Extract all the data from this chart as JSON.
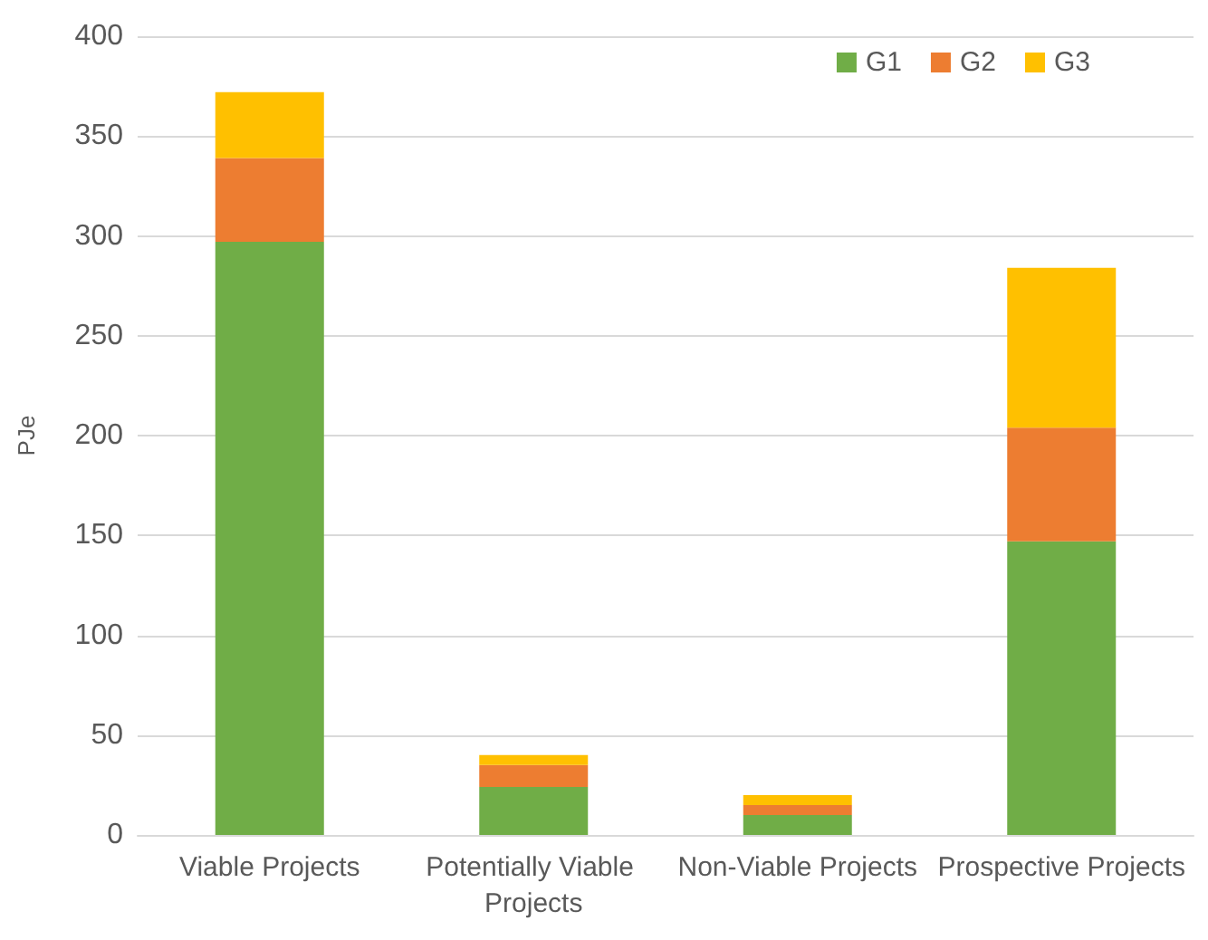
{
  "chart_data": {
    "type": "bar",
    "ylabel": "PJe",
    "categories": [
      "Viable Projects",
      "Potentially Viable Projects",
      "Non-Viable Projects",
      "Prospective Projects"
    ],
    "series": [
      {
        "name": "G1",
        "color": "#70ad47",
        "values": [
          297,
          24,
          10,
          147
        ]
      },
      {
        "name": "G2",
        "color": "#ed7d31",
        "values": [
          42,
          11,
          5,
          57
        ]
      },
      {
        "name": "G3",
        "color": "#ffc000",
        "values": [
          33,
          5,
          5,
          80
        ]
      }
    ],
    "stacked": true,
    "ylim": [
      0,
      400
    ],
    "yticks": [
      0,
      50,
      100,
      150,
      200,
      250,
      300,
      350,
      400
    ],
    "grid": "y",
    "legend": "top right"
  }
}
